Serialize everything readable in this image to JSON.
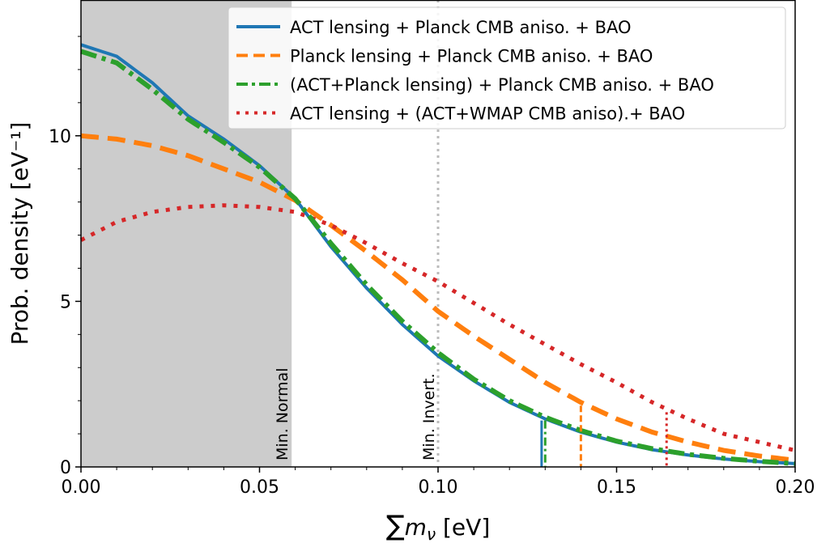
{
  "chart_data": {
    "type": "line",
    "title": "",
    "xlabel": "∑m_ν [eV]",
    "xlabel_sum": "∑",
    "xlabel_m": "m",
    "xlabel_sub": "ν",
    "xlabel_unit": " [eV]",
    "ylabel": "Prob. density [eV⁻¹]",
    "xlim": [
      0.0,
      0.2
    ],
    "ylim": [
      0,
      14.1
    ],
    "xticks": [
      0.0,
      0.05,
      0.1,
      0.15,
      0.2
    ],
    "xtick_labels": [
      "0.00",
      "0.05",
      "0.10",
      "0.15",
      "0.20"
    ],
    "yticks": [
      0,
      5,
      10
    ],
    "ytick_labels": [
      "0",
      "5",
      "10"
    ],
    "shaded_region": {
      "x_from": 0.0,
      "x_to": 0.059,
      "color": "#cccccc",
      "label": "Min. Normal"
    },
    "reference_lines": [
      {
        "x": 0.059,
        "label": "Min. Normal",
        "style": "none"
      },
      {
        "x": 0.1,
        "label": "Min. Invert.",
        "style": "dotted",
        "color": "#bbbbbb"
      }
    ],
    "legend": {
      "placement": "top-right"
    },
    "series": [
      {
        "name": "ACT lensing + Planck CMB aniso. + BAO",
        "color": "#1f77b4",
        "dash": "solid",
        "x": [
          0.0,
          0.01,
          0.02,
          0.03,
          0.04,
          0.05,
          0.06,
          0.07,
          0.08,
          0.09,
          0.1,
          0.11,
          0.12,
          0.13,
          0.14,
          0.15,
          0.16,
          0.17,
          0.18,
          0.19,
          0.2
        ],
        "y": [
          12.75,
          12.4,
          11.6,
          10.6,
          9.9,
          9.1,
          8.1,
          6.65,
          5.4,
          4.3,
          3.35,
          2.6,
          1.95,
          1.45,
          1.05,
          0.75,
          0.52,
          0.36,
          0.24,
          0.16,
          0.1
        ],
        "bound": 0.129
      },
      {
        "name": "Planck lensing + Planck CMB aniso. + BAO",
        "color": "#ff7f0e",
        "dash": "dashed",
        "x": [
          0.0,
          0.01,
          0.02,
          0.03,
          0.04,
          0.05,
          0.06,
          0.07,
          0.08,
          0.09,
          0.1,
          0.11,
          0.12,
          0.13,
          0.14,
          0.15,
          0.16,
          0.17,
          0.18,
          0.19,
          0.2
        ],
        "y": [
          10.0,
          9.9,
          9.7,
          9.4,
          9.0,
          8.6,
          8.05,
          7.3,
          6.5,
          5.65,
          4.7,
          3.95,
          3.25,
          2.55,
          1.95,
          1.45,
          1.05,
          0.75,
          0.5,
          0.33,
          0.2
        ],
        "bound": 0.14
      },
      {
        "name": "(ACT+Planck lensing) + Planck CMB aniso. + BAO",
        "color": "#2ca02c",
        "dash": "dashdot",
        "x": [
          0.0,
          0.01,
          0.02,
          0.03,
          0.04,
          0.05,
          0.06,
          0.07,
          0.08,
          0.09,
          0.1,
          0.11,
          0.12,
          0.13,
          0.14,
          0.15,
          0.16,
          0.17,
          0.18,
          0.19,
          0.2
        ],
        "y": [
          12.55,
          12.2,
          11.4,
          10.5,
          9.8,
          9.05,
          8.1,
          6.75,
          5.5,
          4.4,
          3.45,
          2.65,
          2.0,
          1.5,
          1.1,
          0.78,
          0.55,
          0.38,
          0.26,
          0.17,
          0.1
        ],
        "bound": 0.13
      },
      {
        "name": "ACT lensing + (ACT+WMAP CMB  aniso).+  BAO",
        "color": "#d62728",
        "dash": "dotted",
        "x": [
          0.0,
          0.01,
          0.02,
          0.03,
          0.04,
          0.05,
          0.06,
          0.07,
          0.08,
          0.09,
          0.1,
          0.11,
          0.12,
          0.13,
          0.14,
          0.15,
          0.16,
          0.17,
          0.18,
          0.19,
          0.2
        ],
        "y": [
          6.85,
          7.4,
          7.7,
          7.85,
          7.9,
          7.85,
          7.7,
          7.3,
          6.75,
          6.15,
          5.6,
          4.95,
          4.3,
          3.7,
          3.1,
          2.55,
          1.95,
          1.45,
          1.0,
          0.75,
          0.5
        ],
        "bound": 0.164
      }
    ]
  }
}
